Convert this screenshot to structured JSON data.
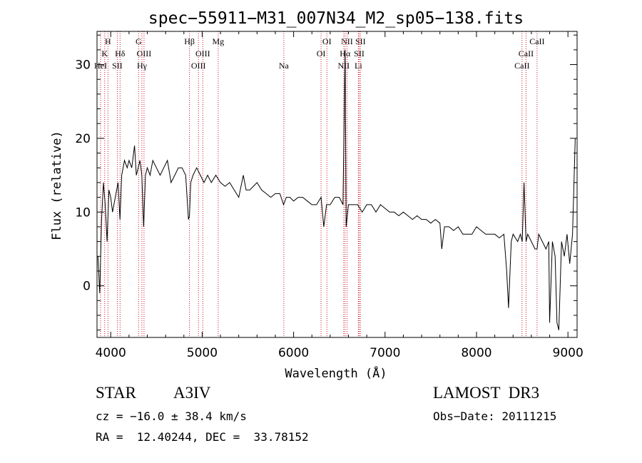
{
  "chart_data": {
    "type": "line",
    "title": "spec−55911−M31_007N34_M2_sp05−138.fits",
    "xlabel": "Wavelength (Å)",
    "ylabel": "Flux (relative)",
    "xlim": [
      3850,
      9100
    ],
    "ylim": [
      -7,
      34.5
    ],
    "xticks": [
      4000,
      5000,
      6000,
      7000,
      8000,
      9000
    ],
    "yticks": [
      0,
      10,
      20,
      30
    ],
    "grid": false,
    "series": [
      {
        "name": "spectrum",
        "x": [
          3860,
          3880,
          3900,
          3920,
          3940,
          3960,
          3980,
          4000,
          4020,
          4050,
          4080,
          4101,
          4120,
          4150,
          4180,
          4200,
          4230,
          4260,
          4280,
          4300,
          4320,
          4340,
          4360,
          4380,
          4400,
          4430,
          4460,
          4500,
          4540,
          4580,
          4620,
          4660,
          4700,
          4740,
          4780,
          4820,
          4850,
          4861,
          4875,
          4900,
          4940,
          4980,
          5020,
          5060,
          5100,
          5150,
          5200,
          5250,
          5300,
          5350,
          5400,
          5450,
          5480,
          5520,
          5560,
          5600,
          5650,
          5700,
          5750,
          5800,
          5850,
          5890,
          5920,
          5960,
          6000,
          6050,
          6100,
          6150,
          6200,
          6250,
          6300,
          6330,
          6360,
          6400,
          6450,
          6500,
          6540,
          6563,
          6575,
          6600,
          6650,
          6700,
          6750,
          6800,
          6850,
          6900,
          6950,
          7000,
          7050,
          7100,
          7150,
          7200,
          7250,
          7300,
          7350,
          7400,
          7450,
          7500,
          7550,
          7600,
          7620,
          7650,
          7700,
          7750,
          7800,
          7850,
          7900,
          7950,
          8000,
          8050,
          8100,
          8150,
          8200,
          8250,
          8300,
          8330,
          8350,
          8380,
          8400,
          8450,
          8480,
          8500,
          8520,
          8542,
          8560,
          8600,
          8640,
          8662,
          8680,
          8720,
          8760,
          8790,
          8800,
          8830,
          8860,
          8880,
          8900,
          8930,
          8960,
          8990,
          9020,
          9050,
          9080
        ],
        "values": [
          4,
          -1,
          9,
          14,
          11,
          6,
          13,
          12,
          10,
          12,
          14,
          9,
          15,
          17,
          16,
          17,
          16,
          19,
          15,
          16,
          17,
          15,
          8,
          15,
          16,
          15,
          17,
          16,
          15,
          16,
          17,
          14,
          15,
          16,
          16,
          15,
          9,
          9.5,
          14,
          15,
          16,
          15,
          14,
          15,
          14,
          15,
          14,
          13.5,
          14,
          13,
          12,
          15,
          13,
          13,
          13.5,
          14,
          13,
          12.5,
          12,
          12.5,
          12.5,
          11,
          12,
          12,
          11.5,
          12,
          12,
          11.5,
          11,
          11,
          12,
          8,
          11,
          11,
          12,
          12,
          11,
          32,
          8,
          11,
          11,
          11,
          10,
          11,
          11,
          10,
          11,
          10.5,
          10,
          10,
          9.5,
          10,
          9.5,
          9,
          9.5,
          9,
          9,
          8.5,
          9,
          8.5,
          5,
          8,
          8,
          7.5,
          8,
          7,
          7,
          7,
          8,
          7.5,
          7,
          7,
          7,
          6.5,
          7,
          2,
          -3,
          6,
          7,
          6,
          7,
          6,
          14,
          6,
          7,
          6,
          5,
          5,
          7,
          6,
          5,
          6,
          -5,
          6,
          4,
          -5,
          -6,
          6,
          4,
          7,
          3,
          7,
          20
        ]
      }
    ],
    "line_markers": [
      {
        "label": "H",
        "x": 3970,
        "row": 1
      },
      {
        "label": "K",
        "x": 3934,
        "row": 2
      },
      {
        "label": "HeI",
        "x": 3889,
        "row": 4
      },
      {
        "label": "SII",
        "x": 4072,
        "row": 4
      },
      {
        "label": "Hδ",
        "x": 4102,
        "row": 2
      },
      {
        "label": "G",
        "x": 4305,
        "row": 1
      },
      {
        "label": "OIII",
        "x": 4364,
        "row": 2
      },
      {
        "label": "Hγ",
        "x": 4341,
        "row": 3
      },
      {
        "label": "Hβ",
        "x": 4861,
        "row": 1
      },
      {
        "label": "OIII",
        "x": 5007,
        "row": 2
      },
      {
        "label": "OIII",
        "x": 4959,
        "row": 3
      },
      {
        "label": "Mg",
        "x": 5175,
        "row": 1
      },
      {
        "label": "Na",
        "x": 5893,
        "row": 3
      },
      {
        "label": "OI",
        "x": 6364,
        "row": 1
      },
      {
        "label": "OI",
        "x": 6300,
        "row": 2
      },
      {
        "label": "NII",
        "x": 6584,
        "row": 1
      },
      {
        "label": "Hα",
        "x": 6563,
        "row": 2
      },
      {
        "label": "NII",
        "x": 6548,
        "row": 3
      },
      {
        "label": "SII",
        "x": 6731,
        "row": 1
      },
      {
        "label": "SII",
        "x": 6717,
        "row": 2
      },
      {
        "label": "Li",
        "x": 6708,
        "row": 3
      },
      {
        "label": "CaII",
        "x": 8662,
        "row": 1
      },
      {
        "label": "CaII",
        "x": 8542,
        "row": 2
      },
      {
        "label": "CaII",
        "x": 8498,
        "row": 3
      }
    ]
  },
  "info": {
    "object_class": "STAR",
    "subclass": "A3IV",
    "survey": "LAMOST  DR3",
    "cz": "cz = −16.0 ± 38.4 km/s",
    "obs_date": "Obs−Date: 20111215",
    "coords": "RA =  12.40244, DEC =  33.78152"
  }
}
